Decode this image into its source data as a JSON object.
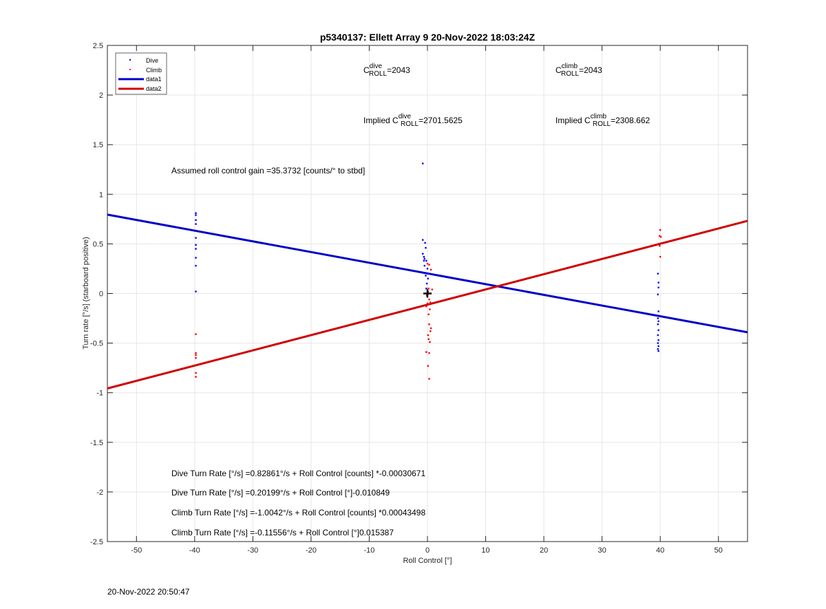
{
  "chart_data": {
    "type": "scatter",
    "title": "p5340137: Ellett Array 9 20-Nov-2022 18:03:24Z",
    "xlabel": "Roll Control [°]",
    "ylabel": "Turn rate [°/s] (starboard positive)",
    "xlim": [
      -55,
      55
    ],
    "ylim": [
      -2.5,
      2.5
    ],
    "xticks": [
      -50,
      -40,
      -30,
      -20,
      -10,
      0,
      10,
      20,
      30,
      40,
      50
    ],
    "xtick_labels": [
      "-50",
      "-40",
      "-30",
      "-20",
      "-10",
      "0",
      "10",
      "20",
      "30",
      "40",
      "50"
    ],
    "yticks": [
      -2.5,
      -2,
      -1.5,
      -1,
      -0.5,
      0,
      0.5,
      1,
      1.5,
      2,
      2.5
    ],
    "ytick_labels": [
      "-2.5",
      "-2",
      "-1.5",
      "-1",
      "-0.5",
      "0",
      "0.5",
      "1",
      "1.5",
      "2",
      "2.5"
    ],
    "grid": true,
    "legend_position": "top-left",
    "colors": {
      "dive": "#0000ff",
      "climb": "#ff0000",
      "data1": "#0000c8",
      "data2": "#d00000",
      "marker": "#000000"
    },
    "series": [
      {
        "name": "Dive",
        "kind": "points",
        "x": [
          -39.8,
          -39.8,
          -39.8,
          -39.8,
          -39.8,
          -39.8,
          -39.8,
          -39.8,
          -39.8,
          -39.8,
          -0.8,
          -0.8,
          -0.8,
          -0.6,
          -0.5,
          -0.4,
          -0.3,
          -0.5,
          -0.2,
          -0.3,
          -0.1,
          0.1,
          -0.6,
          0.0,
          0.2,
          -0.2,
          39.6,
          39.7,
          39.7,
          39.6,
          39.7,
          39.6,
          39.7,
          39.6,
          39.7,
          39.6,
          39.7,
          39.6,
          39.7,
          39.6,
          39.7
        ],
        "y": [
          0.81,
          0.79,
          0.74,
          0.7,
          0.56,
          0.49,
          0.45,
          0.36,
          0.28,
          0.02,
          1.31,
          0.54,
          0.4,
          0.37,
          0.35,
          0.51,
          0.46,
          0.28,
          0.33,
          0.18,
          0.1,
          0.15,
          0.33,
          0.25,
          0.2,
          0.05,
          0.2,
          0.11,
          0.06,
          -0.01,
          -0.18,
          -0.25,
          -0.28,
          -0.31,
          -0.37,
          -0.42,
          -0.47,
          -0.5,
          -0.53,
          -0.56,
          -0.58
        ]
      },
      {
        "name": "Climb",
        "kind": "points",
        "x": [
          -39.8,
          -39.8,
          -39.8,
          -39.8,
          -39.8,
          -39.8,
          0.3,
          0.6,
          0.2,
          0.8,
          0.1,
          -0.1,
          0.3,
          0.5,
          0.0,
          -0.2,
          0.4,
          0.2,
          0.3,
          0.6,
          0.5,
          0.1,
          0.2,
          0.4,
          -0.2,
          0.3,
          0.1,
          0.3,
          0.0,
          40.0,
          39.9,
          40.1,
          40.0,
          39.9
        ],
        "y": [
          -0.41,
          -0.6,
          -0.62,
          -0.65,
          -0.8,
          -0.84,
          0.29,
          0.24,
          0.05,
          0.04,
          0.02,
          -0.02,
          -0.06,
          -0.09,
          -0.1,
          -0.13,
          -0.16,
          -0.21,
          -0.31,
          -0.35,
          -0.38,
          -0.42,
          -0.46,
          -0.49,
          -0.59,
          -0.6,
          -0.73,
          -0.86,
          0.3,
          0.64,
          0.58,
          0.57,
          0.37,
          0.48
        ]
      },
      {
        "name": "data1",
        "kind": "line",
        "x": [
          -55,
          55
        ],
        "y": [
          0.795,
          -0.391
        ]
      },
      {
        "name": "data2",
        "kind": "line",
        "x": [
          -55,
          55
        ],
        "y": [
          -0.957,
          0.732
        ]
      }
    ],
    "marker_point": {
      "x": 0,
      "y": 0
    },
    "annotations": {
      "c_dive_prefix": "C",
      "c_dive_sup": "dive",
      "c_dive_sub": "ROLL",
      "c_dive_value": "=2043",
      "c_climb_prefix": "C",
      "c_climb_sup": "climb",
      "c_climb_sub": "ROLL",
      "c_climb_value": "=2043",
      "impl_dive_prefix": "Implied C",
      "impl_dive_sup": "dive",
      "impl_dive_sub": "ROLL",
      "impl_dive_value": "=2701.5625",
      "impl_climb_prefix": "Implied C",
      "impl_climb_sup": "climb",
      "impl_climb_sub": "ROLL",
      "impl_climb_value": "=2308.662",
      "gain": "Assumed roll control gain =35.3732 [counts/° to stbd]",
      "eq1": "Dive Turn Rate [°/s] =0.82861°/s + Roll Control [counts] *-0.00030671",
      "eq2": "Dive Turn Rate [°/s] =0.20199°/s + Roll Control [°]-0.010849",
      "eq3": "Climb Turn Rate [°/s] =-1.0042°/s + Roll Control [counts] *0.00043498",
      "eq4": "Climb Turn Rate [°/s] =-0.11556°/s + Roll Control [°]0.015387"
    }
  },
  "footer": {
    "timestamp": "20-Nov-2022 20:50:47"
  }
}
